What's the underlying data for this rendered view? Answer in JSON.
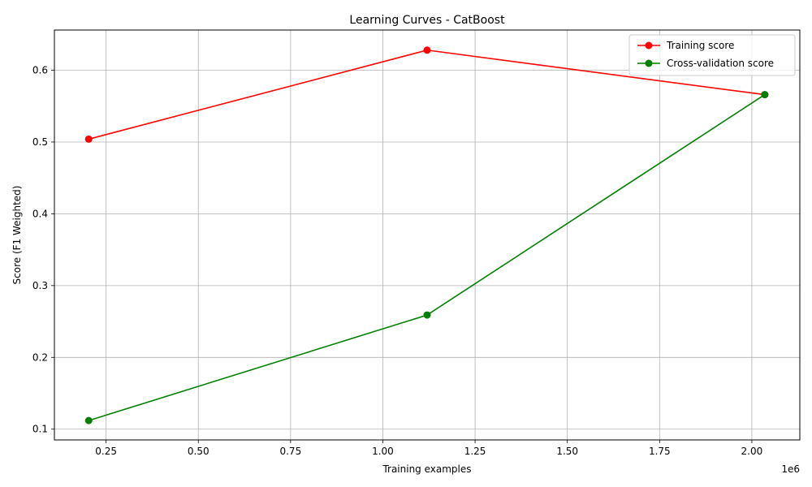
{
  "chart_data": {
    "type": "line",
    "title": "Learning Curves - CatBoost",
    "xlabel": "Training examples",
    "ylabel": "Score (F1 Weighted)",
    "x_offset_label": "1e6",
    "xlim": [
      110000,
      2130000
    ],
    "ylim": [
      0.085,
      0.656
    ],
    "x_ticks": [
      0.25,
      0.5,
      0.75,
      1.0,
      1.25,
      1.5,
      1.75,
      2.0
    ],
    "x_tick_labels": [
      "0.25",
      "0.50",
      "0.75",
      "1.00",
      "1.25",
      "1.50",
      "1.75",
      "2.00"
    ],
    "y_ticks": [
      0.1,
      0.2,
      0.3,
      0.4,
      0.5,
      0.6
    ],
    "y_tick_labels": [
      "0.1",
      "0.2",
      "0.3",
      "0.4",
      "0.5",
      "0.6"
    ],
    "grid": true,
    "legend_position": "upper-right",
    "x": [
      203000,
      1120000,
      2035000
    ],
    "series": [
      {
        "name": "Training score",
        "color": "#ff0000",
        "values": [
          0.504,
          0.628,
          0.566
        ]
      },
      {
        "name": "Cross-validation score",
        "color": "#008000",
        "values": [
          0.112,
          0.259,
          0.566
        ]
      }
    ]
  }
}
